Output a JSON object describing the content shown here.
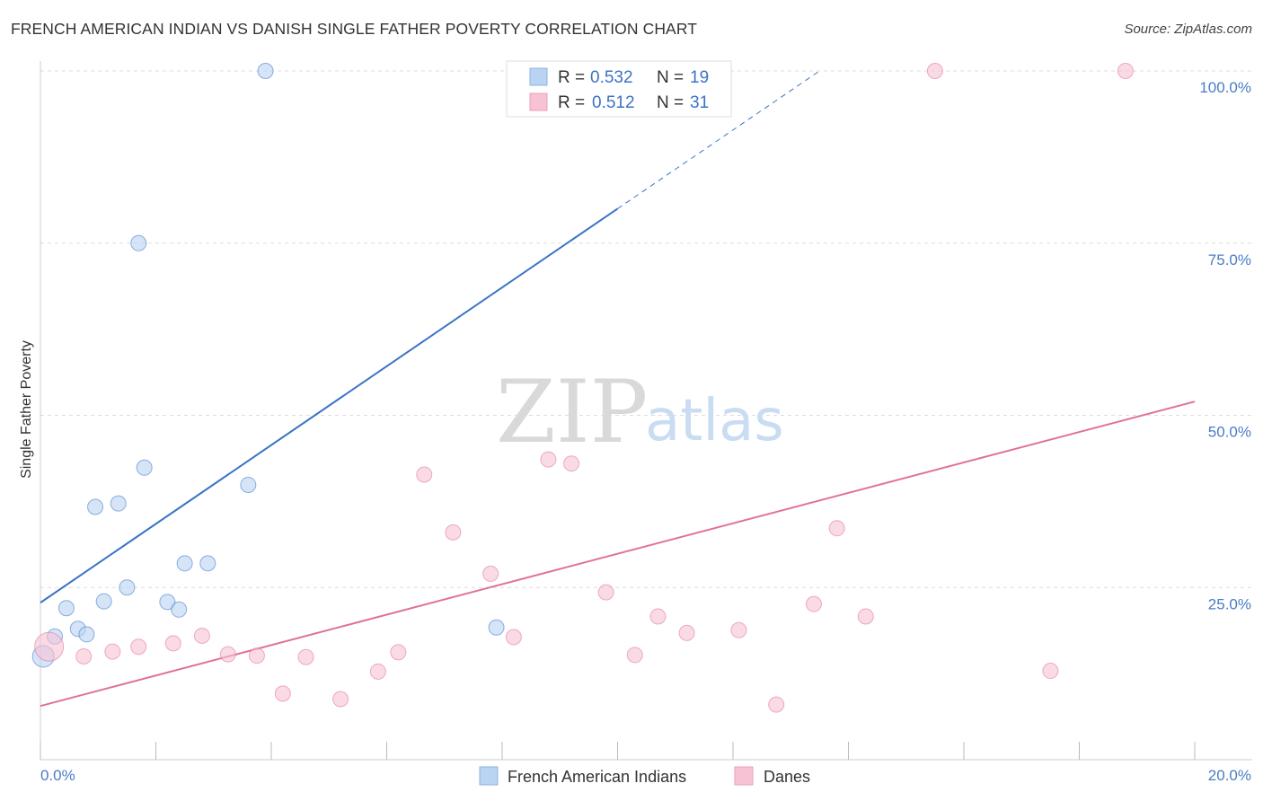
{
  "title": "FRENCH AMERICAN INDIAN VS DANISH SINGLE FATHER POVERTY CORRELATION CHART",
  "source": "Source: ZipAtlas.com",
  "watermark": {
    "zip": "ZIP",
    "atlas": "atlas"
  },
  "colors": {
    "blue": "#3b73c6",
    "blue_fill": "#b9d3f2",
    "pink": "#e0709a",
    "pink_fill": "#f7c2d3",
    "grid": "#dddddd",
    "tick_label": "#4a7cc7"
  },
  "legend": {
    "rows": [
      {
        "r_label": "R =",
        "r_value": "0.532",
        "n_label": "N =",
        "n_value": "19",
        "color": "blue"
      },
      {
        "r_label": "R =",
        "r_value": "0.512",
        "n_label": "N =",
        "n_value": "31",
        "color": "pink"
      }
    ]
  },
  "bottom_legend": [
    "French American Indians",
    "Danes"
  ],
  "chart_data": {
    "type": "scatter",
    "title": "FRENCH AMERICAN INDIAN VS DANISH SINGLE FATHER POVERTY CORRELATION CHART",
    "xlabel": "",
    "ylabel": "Single Father Poverty",
    "xlim": [
      0,
      20
    ],
    "ylim": [
      0,
      100
    ],
    "x_ticks": [
      0,
      2,
      4,
      6,
      8,
      10,
      12,
      14,
      16,
      18,
      20
    ],
    "x_tick_labels": {
      "0": "0.0%",
      "20": "20.0%"
    },
    "y_ticks": [
      25,
      50,
      75,
      100
    ],
    "y_tick_labels": [
      "25.0%",
      "50.0%",
      "75.0%",
      "100.0%"
    ],
    "grid": "horizontal dashed",
    "legend_position": "top-center",
    "series": [
      {
        "name": "French American Indians",
        "color": "blue",
        "points": [
          [
            0.05,
            15.0
          ],
          [
            0.25,
            17.9
          ],
          [
            0.45,
            22.0
          ],
          [
            0.65,
            19.0
          ],
          [
            0.8,
            18.2
          ],
          [
            0.95,
            36.7
          ],
          [
            1.1,
            23.0
          ],
          [
            1.35,
            37.2
          ],
          [
            1.5,
            25.0
          ],
          [
            1.7,
            75.0
          ],
          [
            1.8,
            42.4
          ],
          [
            2.2,
            22.9
          ],
          [
            2.4,
            21.8
          ],
          [
            2.5,
            28.5
          ],
          [
            2.9,
            28.5
          ],
          [
            3.6,
            39.9
          ],
          [
            3.9,
            100.0
          ],
          [
            7.9,
            19.2
          ],
          [
            9.3,
            100.0
          ]
        ],
        "trend": {
          "x0": 0,
          "y0": 22.8,
          "x1": 10.0,
          "y1": 80.0,
          "dash_to_x": 13.5,
          "dash_to_y": 100.0
        }
      },
      {
        "name": "Danes",
        "color": "pink",
        "points": [
          [
            0.15,
            16.4
          ],
          [
            0.75,
            15.0
          ],
          [
            1.25,
            15.7
          ],
          [
            1.7,
            16.4
          ],
          [
            2.3,
            16.9
          ],
          [
            2.8,
            18.0
          ],
          [
            3.25,
            15.3
          ],
          [
            3.75,
            15.1
          ],
          [
            4.2,
            9.6
          ],
          [
            4.6,
            14.9
          ],
          [
            5.2,
            8.8
          ],
          [
            5.85,
            12.8
          ],
          [
            6.2,
            15.6
          ],
          [
            6.65,
            41.4
          ],
          [
            7.15,
            33.0
          ],
          [
            7.8,
            27.0
          ],
          [
            8.2,
            17.8
          ],
          [
            8.8,
            43.6
          ],
          [
            9.2,
            43.0
          ],
          [
            9.8,
            24.3
          ],
          [
            10.3,
            15.2
          ],
          [
            10.7,
            20.8
          ],
          [
            11.2,
            18.4
          ],
          [
            12.1,
            18.8
          ],
          [
            12.75,
            8.0
          ],
          [
            13.4,
            22.6
          ],
          [
            13.8,
            33.6
          ],
          [
            14.3,
            20.8
          ],
          [
            15.5,
            100.0
          ],
          [
            17.5,
            12.9
          ],
          [
            18.8,
            100.0
          ]
        ],
        "trend": {
          "x0": 0,
          "y0": 7.8,
          "x1": 20,
          "y1": 52.0
        }
      }
    ]
  }
}
